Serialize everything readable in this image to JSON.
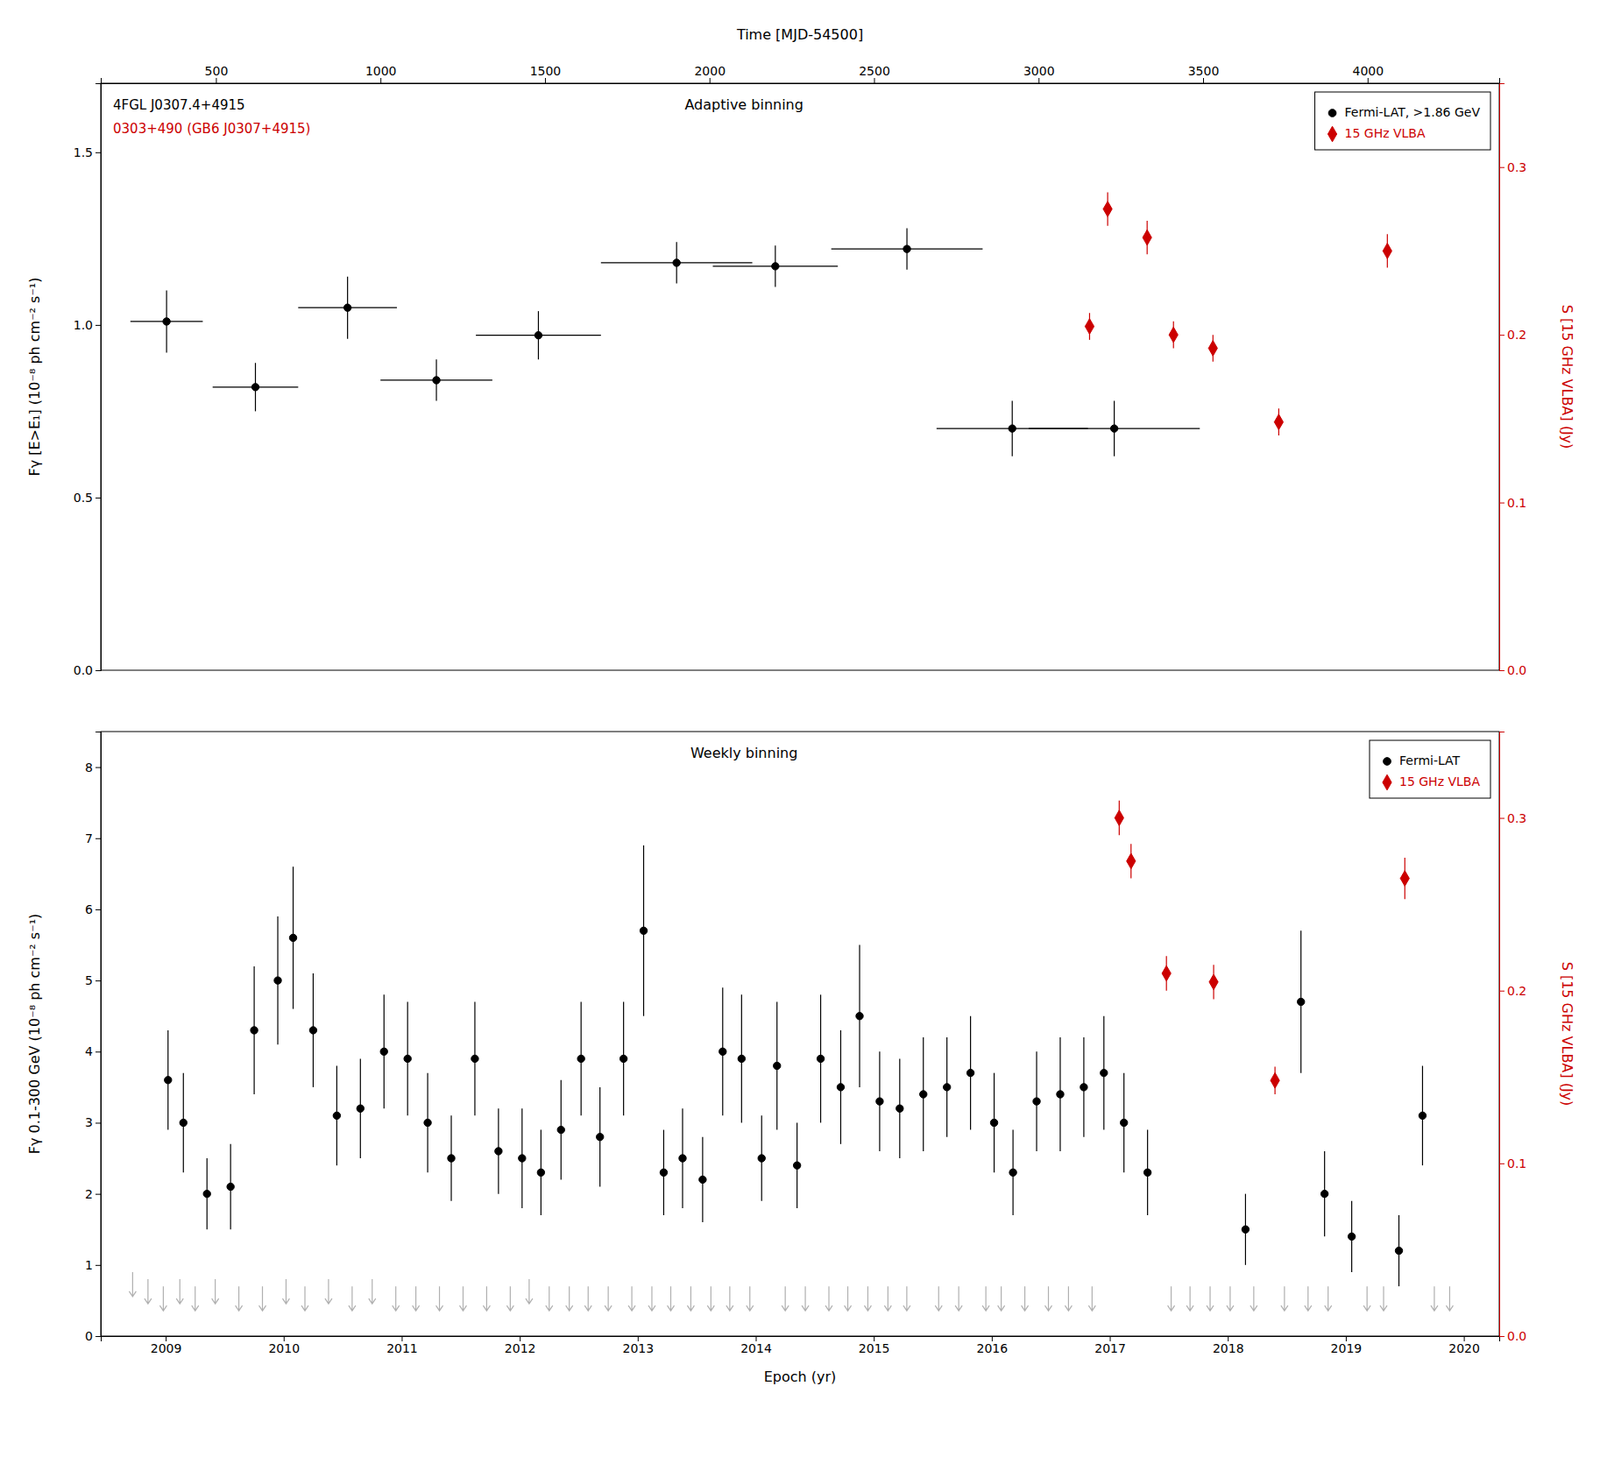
{
  "chart_data": [
    {
      "type": "scatter",
      "xlabel": "Time [MJD-54500]",
      "ylabel": "Fγ [E>E₁] (10⁻⁸ ph cm⁻² s⁻¹)",
      "y2label": "S [15 GHz VLBA] (Jy)",
      "xlim": [
        150,
        4400
      ],
      "xticks": [
        500,
        1000,
        1500,
        2000,
        2500,
        3000,
        3500,
        4000
      ],
      "ylim": [
        0,
        1.7
      ],
      "yticks": [
        {
          "value": 0,
          "label": "0.0"
        },
        0.5,
        {
          "value": 1.0,
          "label": "1.0"
        },
        1.5
      ],
      "y2lim": [
        0,
        0.35
      ],
      "y2ticks": [
        {
          "value": 0,
          "label": "0.0"
        },
        0.1,
        0.2,
        0.3
      ],
      "grid": false,
      "legend": "upper right",
      "annotations": [
        {
          "text": "4FGL J0307.4+4915"
        },
        {
          "text": "0303+490 (GB6 J0307+4915)",
          "color": "#cc0000"
        },
        {
          "text": "Adaptive binning"
        }
      ],
      "series": [
        {
          "name": "Fermi-LAT, >1.86 GeV",
          "color": "#000000",
          "marker": "circle",
          "x": [
            350,
            620,
            900,
            1170,
            1480,
            1900,
            2200,
            2600,
            2920,
            3230
          ],
          "values": [
            1.01,
            0.82,
            1.05,
            0.84,
            0.97,
            1.18,
            1.17,
            1.22,
            0.7,
            0.7
          ],
          "xerr_lo": [
            110,
            130,
            150,
            170,
            190,
            230,
            190,
            230,
            230,
            260
          ],
          "xerr_hi": [
            110,
            130,
            150,
            170,
            190,
            230,
            190,
            230,
            230,
            260
          ],
          "yerr_lo": [
            0.09,
            0.07,
            0.09,
            0.06,
            0.07,
            0.06,
            0.06,
            0.06,
            0.08,
            0.08
          ],
          "yerr_hi": [
            0.09,
            0.07,
            0.09,
            0.06,
            0.07,
            0.06,
            0.06,
            0.06,
            0.08,
            0.08
          ]
        },
        {
          "name": "15 GHz VLBA",
          "color": "#cc0000",
          "marker": "diamond",
          "axis": "y2",
          "x": [
            3155,
            3210,
            3330,
            3410,
            3530,
            3730,
            4060
          ],
          "values": [
            0.205,
            0.275,
            0.258,
            0.2,
            0.192,
            0.148,
            0.25
          ],
          "yerr": [
            0.008,
            0.01,
            0.01,
            0.008,
            0.008,
            0.008,
            0.01
          ]
        }
      ]
    },
    {
      "type": "scatter",
      "xlabel": "Epoch (yr)",
      "ylabel": "Fγ 0.1-300 GeV (10⁻⁸ ph cm⁻² s⁻¹)",
      "y2label": "S [15 GHz VLBA] (Jy)",
      "xlim": [
        2008.45,
        2020.3
      ],
      "xticks": [
        2009,
        2010,
        2011,
        2012,
        2013,
        2014,
        2015,
        2016,
        2017,
        2018,
        2019,
        2020
      ],
      "ylim": [
        0,
        8.5
      ],
      "yticks": [
        0,
        1,
        2,
        3,
        4,
        5,
        6,
        7,
        8
      ],
      "y2lim": [
        0,
        0.35
      ],
      "y2ticks": [
        {
          "value": 0,
          "label": "0.0"
        },
        0.1,
        0.2,
        0.3
      ],
      "grid": false,
      "legend": "upper right",
      "annotations": [
        {
          "text": "Weekly binning"
        }
      ],
      "series": [
        {
          "name": "Fermi-LAT",
          "color": "#000000",
          "marker": "circle",
          "x": [
            2009.02,
            2009.15,
            2009.35,
            2009.55,
            2009.75,
            2009.95,
            2010.08,
            2010.25,
            2010.45,
            2010.65,
            2010.85,
            2011.05,
            2011.22,
            2011.42,
            2011.62,
            2011.82,
            2012.02,
            2012.18,
            2012.35,
            2012.52,
            2012.68,
            2012.88,
            2013.05,
            2013.22,
            2013.38,
            2013.55,
            2013.72,
            2013.88,
            2014.05,
            2014.18,
            2014.35,
            2014.55,
            2014.72,
            2014.88,
            2015.05,
            2015.22,
            2015.42,
            2015.62,
            2015.82,
            2016.02,
            2016.18,
            2016.38,
            2016.58,
            2016.78,
            2016.95,
            2017.12,
            2017.32,
            2018.15,
            2018.62,
            2018.82,
            2019.05,
            2019.45,
            2019.65
          ],
          "values": [
            3.6,
            3.0,
            2.0,
            2.1,
            4.3,
            5.0,
            5.6,
            4.3,
            3.1,
            3.2,
            4.0,
            3.9,
            3.0,
            2.5,
            3.9,
            2.6,
            2.5,
            2.3,
            2.9,
            3.9,
            2.8,
            3.9,
            5.7,
            2.3,
            2.5,
            2.2,
            4.0,
            3.9,
            2.5,
            3.8,
            2.4,
            3.9,
            3.5,
            4.5,
            3.3,
            3.2,
            3.4,
            3.5,
            3.7,
            3.0,
            2.3,
            3.3,
            3.4,
            3.5,
            3.7,
            3.0,
            2.3,
            1.5,
            4.7,
            2.0,
            1.4,
            1.2,
            3.1
          ],
          "yerr": [
            0.7,
            0.7,
            0.5,
            0.6,
            0.9,
            0.9,
            1.0,
            0.8,
            0.7,
            0.7,
            0.8,
            0.8,
            0.7,
            0.6,
            0.8,
            0.6,
            0.7,
            0.6,
            0.7,
            0.8,
            0.7,
            0.8,
            1.2,
            0.6,
            0.7,
            0.6,
            0.9,
            0.9,
            0.6,
            0.9,
            0.6,
            0.9,
            0.8,
            1.0,
            0.7,
            0.7,
            0.8,
            0.7,
            0.8,
            0.7,
            0.6,
            0.7,
            0.8,
            0.7,
            0.8,
            0.7,
            0.6,
            0.5,
            1.0,
            0.6,
            0.5,
            0.5,
            0.7
          ]
        },
        {
          "type": "upper_limit",
          "color": "#b0b0b0",
          "x": [
            2008.72,
            2008.85,
            2008.98,
            2009.12,
            2009.25,
            2009.42,
            2009.62,
            2009.82,
            2010.02,
            2010.18,
            2010.38,
            2010.58,
            2010.75,
            2010.95,
            2011.12,
            2011.32,
            2011.52,
            2011.72,
            2011.92,
            2012.08,
            2012.25,
            2012.42,
            2012.58,
            2012.75,
            2012.95,
            2013.12,
            2013.28,
            2013.45,
            2013.62,
            2013.78,
            2013.95,
            2014.25,
            2014.42,
            2014.62,
            2014.78,
            2014.95,
            2015.12,
            2015.28,
            2015.55,
            2015.72,
            2015.95,
            2016.08,
            2016.28,
            2016.48,
            2016.65,
            2016.85,
            2017.52,
            2017.68,
            2017.85,
            2018.02,
            2018.22,
            2018.48,
            2018.68,
            2018.85,
            2019.18,
            2019.32,
            2019.75,
            2019.88
          ],
          "values": [
            0.9,
            0.8,
            0.7,
            0.8,
            0.7,
            0.8,
            0.7,
            0.7,
            0.8,
            0.7,
            0.8,
            0.7,
            0.8,
            0.7,
            0.7,
            0.7,
            0.7,
            0.7,
            0.7,
            0.8,
            0.7,
            0.7,
            0.7,
            0.7,
            0.7,
            0.7,
            0.7,
            0.7,
            0.7,
            0.7,
            0.7,
            0.7,
            0.7,
            0.7,
            0.7,
            0.7,
            0.7,
            0.7,
            0.7,
            0.7,
            0.7,
            0.7,
            0.7,
            0.7,
            0.7,
            0.7,
            0.7,
            0.7,
            0.7,
            0.7,
            0.7,
            0.7,
            0.7,
            0.7,
            0.7,
            0.7,
            0.7,
            0.7
          ]
        },
        {
          "name": "15 GHz VLBA",
          "color": "#cc0000",
          "marker": "diamond",
          "axis": "y2",
          "x": [
            2017.08,
            2017.18,
            2017.48,
            2017.88,
            2018.4,
            2019.5
          ],
          "values": [
            0.3,
            0.275,
            0.21,
            0.205,
            0.148,
            0.265
          ],
          "yerr": [
            0.01,
            0.01,
            0.01,
            0.01,
            0.008,
            0.012
          ]
        }
      ]
    }
  ]
}
